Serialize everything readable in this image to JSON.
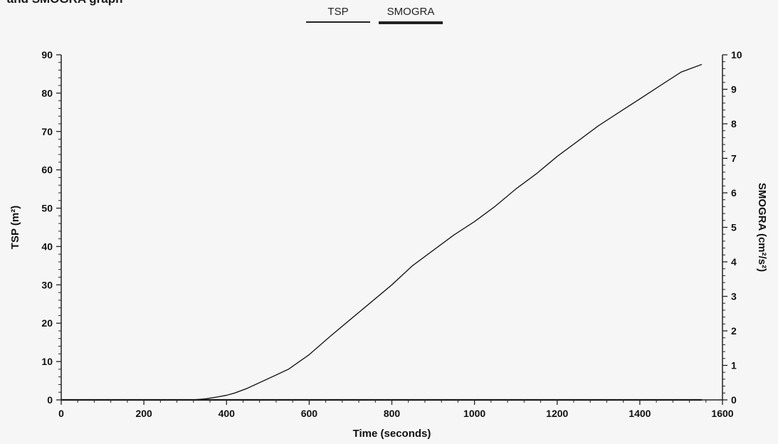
{
  "page": {
    "title": "P and SMOGRA graph"
  },
  "legend": [
    {
      "label": "TSP",
      "style": "thin"
    },
    {
      "label": "SMOGRA",
      "style": "thick"
    }
  ],
  "chart_data": {
    "type": "line",
    "xlabel": "Time (seconds)",
    "ylabel_left": "TSP (m²)",
    "ylabel_right": "SMOGRA (cm²/s²)",
    "xlim": [
      0,
      1600
    ],
    "ylim_left": [
      0,
      90
    ],
    "ylim_right": [
      0,
      10
    ],
    "x_ticks": [
      0,
      200,
      400,
      600,
      800,
      1000,
      1200,
      1400,
      1600
    ],
    "y_ticks_left": [
      0,
      10,
      20,
      30,
      40,
      50,
      60,
      70,
      80,
      90
    ],
    "y_ticks_right": [
      0,
      1,
      2,
      3,
      4,
      5,
      6,
      7,
      8,
      9,
      10
    ],
    "grid": false,
    "colors": {
      "line": "#1a1a1a",
      "axis": "#222222"
    },
    "series": [
      {
        "name": "TSP",
        "axis": "left",
        "x": [
          320,
          350,
          380,
          400,
          420,
          450,
          480,
          500,
          550,
          600,
          650,
          700,
          750,
          800,
          850,
          900,
          950,
          1000,
          1050,
          1100,
          1150,
          1200,
          1250,
          1300,
          1350,
          1400,
          1450,
          1500,
          1550
        ],
        "y": [
          0,
          0.3,
          0.8,
          1.2,
          1.8,
          3.0,
          4.5,
          5.5,
          8.0,
          11.8,
          16.5,
          21.0,
          25.5,
          30.0,
          35.0,
          39.0,
          43.0,
          46.5,
          50.5,
          55.0,
          59.0,
          63.5,
          67.5,
          71.5,
          75.0,
          78.5,
          82.0,
          85.5,
          87.5
        ]
      },
      {
        "name": "SMOGRA",
        "axis": "right",
        "x": [
          0,
          1550
        ],
        "y": [
          0,
          0
        ]
      }
    ]
  }
}
